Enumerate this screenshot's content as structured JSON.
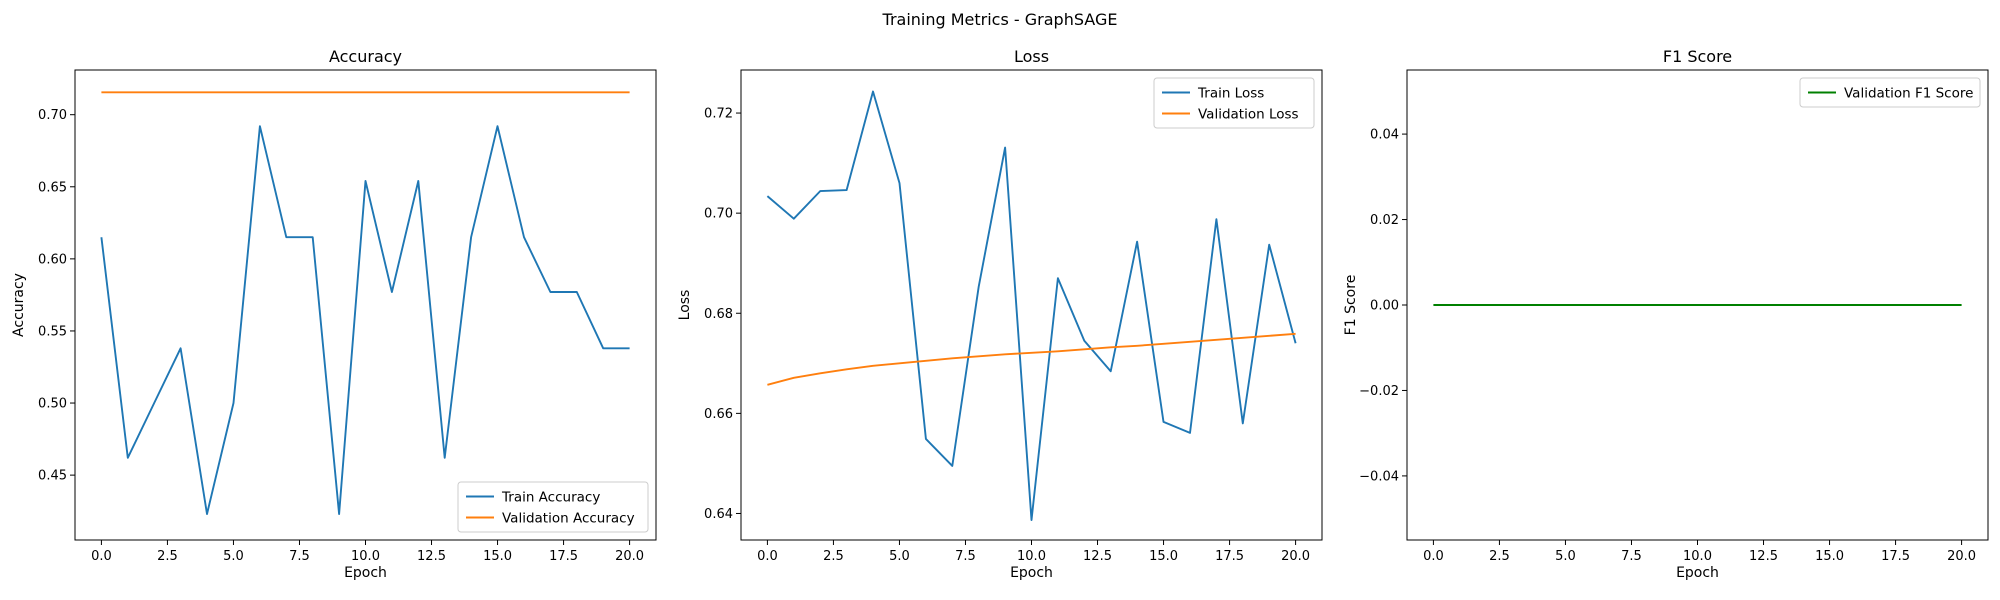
{
  "suptitle": "Training Metrics - GraphSAGE",
  "colors": {
    "train": "#1f77b4",
    "validation": "#ff7f0e",
    "f1": "#008000",
    "axes": "#000000"
  },
  "chart_data": [
    {
      "type": "line",
      "title": "Accuracy",
      "xlabel": "Epoch",
      "ylabel": "Accuracy",
      "xlim": [
        -1.0,
        21.0
      ],
      "ylim": [
        0.405,
        0.731
      ],
      "xticks": [
        0.0,
        2.5,
        5.0,
        7.5,
        10.0,
        12.5,
        15.0,
        17.5,
        20.0
      ],
      "xtick_labels": [
        "0.0",
        "2.5",
        "5.0",
        "7.5",
        "10.0",
        "12.5",
        "15.0",
        "17.5",
        "20.0"
      ],
      "yticks": [
        0.45,
        0.5,
        0.55,
        0.6,
        0.65,
        0.7
      ],
      "ytick_labels": [
        "0.45",
        "0.50",
        "0.55",
        "0.60",
        "0.65",
        "0.70"
      ],
      "legend_position": "lower-right",
      "grid": false,
      "x": [
        0,
        1,
        2,
        3,
        4,
        5,
        6,
        7,
        8,
        9,
        10,
        11,
        12,
        13,
        14,
        15,
        16,
        17,
        18,
        19,
        20
      ],
      "series": [
        {
          "name": "Train Accuracy",
          "color": "#1f77b4",
          "values": [
            0.615,
            0.462,
            0.5,
            0.538,
            0.423,
            0.5,
            0.692,
            0.615,
            0.615,
            0.423,
            0.654,
            0.577,
            0.654,
            0.462,
            0.615,
            0.692,
            0.615,
            0.577,
            0.577,
            0.538,
            0.538
          ]
        },
        {
          "name": "Validation Accuracy",
          "color": "#ff7f0e",
          "values": [
            0.7155,
            0.7155,
            0.7155,
            0.7155,
            0.7155,
            0.7155,
            0.7155,
            0.7155,
            0.7155,
            0.7155,
            0.7155,
            0.7155,
            0.7155,
            0.7155,
            0.7155,
            0.7155,
            0.7155,
            0.7155,
            0.7155,
            0.7155,
            0.7155
          ]
        }
      ]
    },
    {
      "type": "line",
      "title": "Loss",
      "xlabel": "Epoch",
      "ylabel": "Loss",
      "xlim": [
        -1.0,
        21.0
      ],
      "ylim": [
        0.6347,
        0.7286
      ],
      "xticks": [
        0.0,
        2.5,
        5.0,
        7.5,
        10.0,
        12.5,
        15.0,
        17.5,
        20.0
      ],
      "xtick_labels": [
        "0.0",
        "2.5",
        "5.0",
        "7.5",
        "10.0",
        "12.5",
        "15.0",
        "17.5",
        "20.0"
      ],
      "yticks": [
        0.64,
        0.66,
        0.68,
        0.7,
        0.72
      ],
      "ytick_labels": [
        "0.64",
        "0.66",
        "0.68",
        "0.70",
        "0.72"
      ],
      "legend_position": "top-right",
      "grid": false,
      "x": [
        0,
        1,
        2,
        3,
        4,
        5,
        6,
        7,
        8,
        9,
        10,
        11,
        12,
        13,
        14,
        15,
        16,
        17,
        18,
        19,
        20
      ],
      "series": [
        {
          "name": "Train Loss",
          "color": "#1f77b4",
          "values": [
            0.7034,
            0.6989,
            0.7044,
            0.7046,
            0.7243,
            0.706,
            0.6549,
            0.6495,
            0.6853,
            0.7131,
            0.6387,
            0.687,
            0.6745,
            0.6684,
            0.6943,
            0.6583,
            0.6561,
            0.6988,
            0.658,
            0.6937,
            0.674
          ]
        },
        {
          "name": "Validation Loss",
          "color": "#ff7f0e",
          "values": [
            0.6657,
            0.6671,
            0.668,
            0.6688,
            0.6695,
            0.67,
            0.6705,
            0.671,
            0.6714,
            0.6718,
            0.6721,
            0.6724,
            0.6728,
            0.6732,
            0.6735,
            0.6739,
            0.6743,
            0.6747,
            0.6751,
            0.6755,
            0.6759
          ]
        }
      ]
    },
    {
      "type": "line",
      "title": "F1 Score",
      "xlabel": "Epoch",
      "ylabel": "F1 Score",
      "xlim": [
        -1.0,
        21.0
      ],
      "ylim": [
        -0.055,
        0.055
      ],
      "xticks": [
        0.0,
        2.5,
        5.0,
        7.5,
        10.0,
        12.5,
        15.0,
        17.5,
        20.0
      ],
      "xtick_labels": [
        "0.0",
        "2.5",
        "5.0",
        "7.5",
        "10.0",
        "12.5",
        "15.0",
        "17.5",
        "20.0"
      ],
      "yticks": [
        -0.04,
        -0.02,
        0.0,
        0.02,
        0.04
      ],
      "ytick_labels": [
        "−0.04",
        "−0.02",
        "0.00",
        "0.02",
        "0.04"
      ],
      "legend_position": "top-right",
      "grid": false,
      "x": [
        0,
        1,
        2,
        3,
        4,
        5,
        6,
        7,
        8,
        9,
        10,
        11,
        12,
        13,
        14,
        15,
        16,
        17,
        18,
        19,
        20
      ],
      "series": [
        {
          "name": "Validation F1 Score",
          "color": "#008000",
          "values": [
            0,
            0,
            0,
            0,
            0,
            0,
            0,
            0,
            0,
            0,
            0,
            0,
            0,
            0,
            0,
            0,
            0,
            0,
            0,
            0,
            0
          ]
        }
      ]
    }
  ]
}
